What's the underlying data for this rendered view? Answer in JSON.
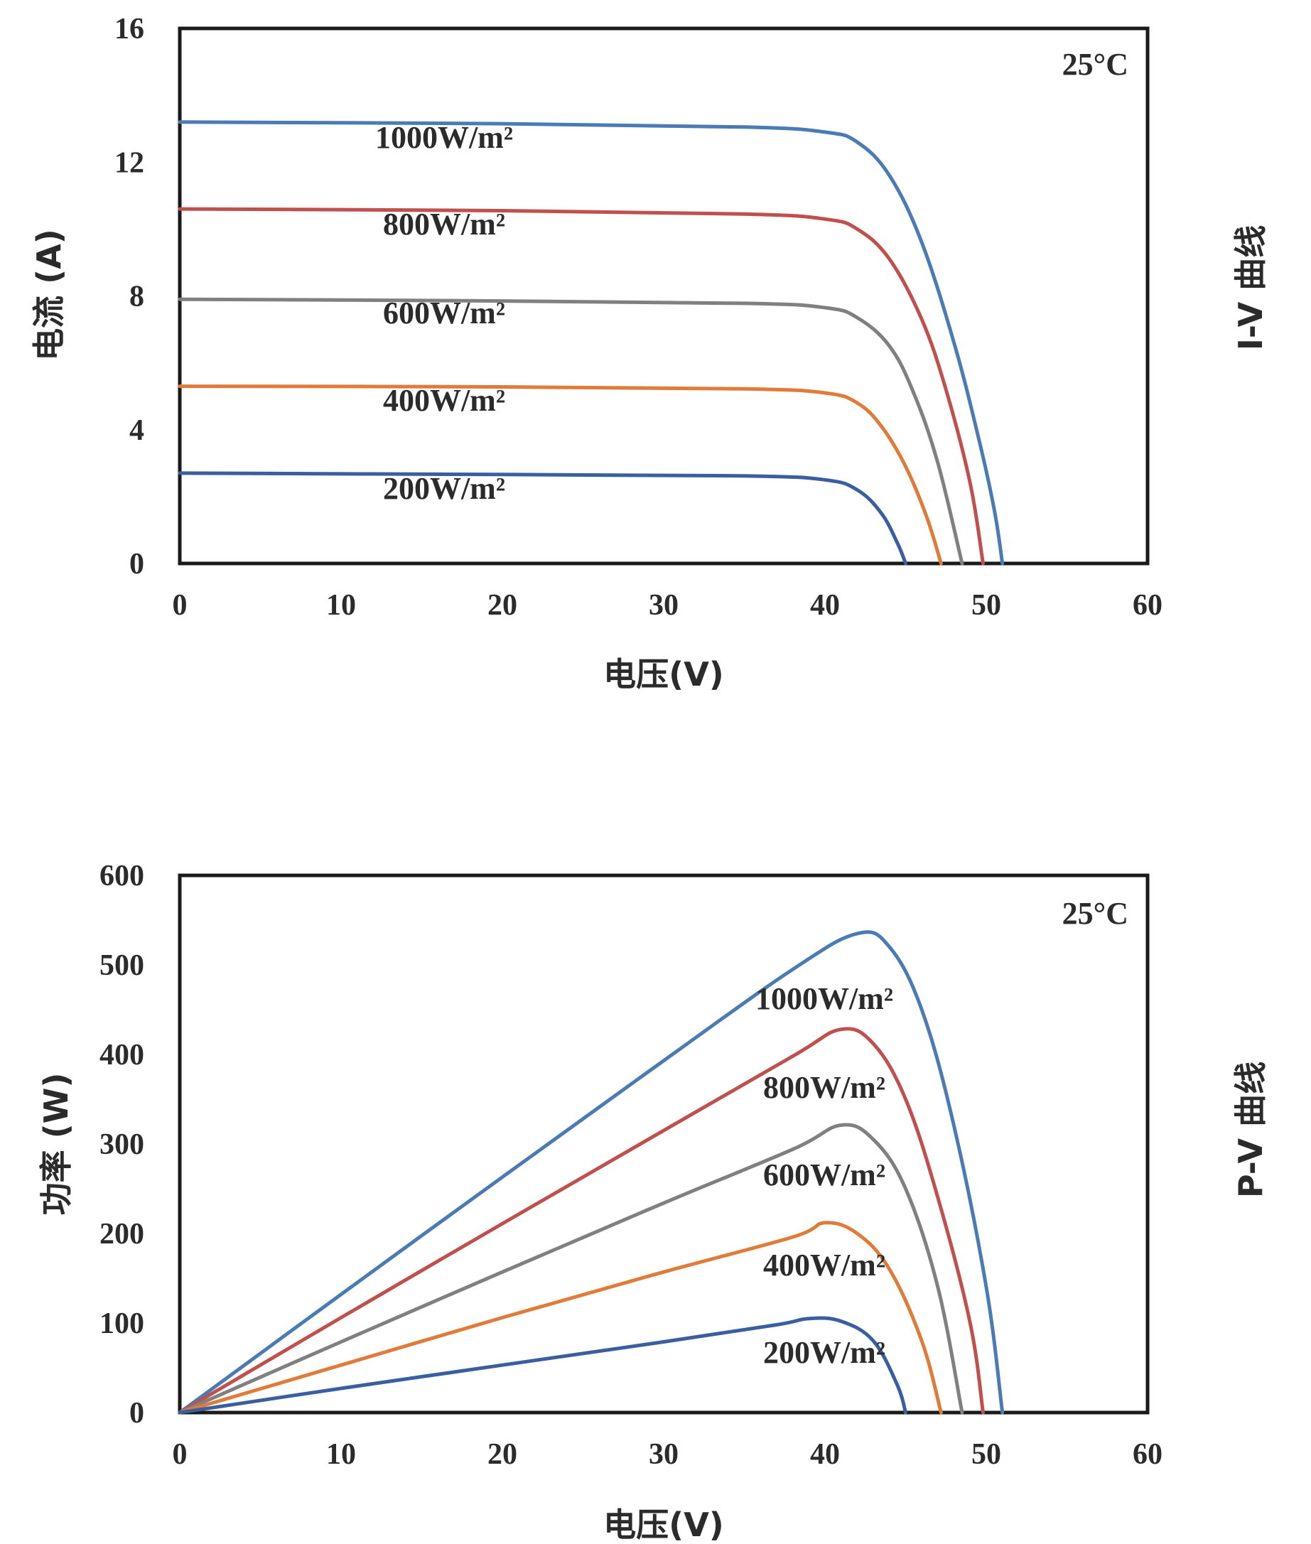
{
  "chart_data": [
    {
      "type": "line",
      "side_label": "I-V 曲线",
      "annotation": "25°C",
      "xlabel": "电压(V)",
      "ylabel": "电流 (A)",
      "xlim": [
        0,
        60
      ],
      "ylim": [
        0,
        16
      ],
      "xticks": [
        "0",
        "10",
        "20",
        "30",
        "40",
        "50",
        "60"
      ],
      "yticks": [
        "0",
        "4",
        "8",
        "12",
        "16"
      ],
      "series": [
        {
          "name": "1000W/m²",
          "color": "#4a7bb4",
          "isc": 13.2,
          "voc": 51.0,
          "vk": 2.3,
          "points": [
            [
              0,
              13.2
            ],
            [
              20,
              13.15
            ],
            [
              35,
              13.05
            ],
            [
              40,
              12.9
            ],
            [
              42,
              12.6
            ],
            [
              44,
              11.6
            ],
            [
              46,
              9.6
            ],
            [
              48,
              6.6
            ],
            [
              49.5,
              3.8
            ],
            [
              50.5,
              1.6
            ],
            [
              51,
              0
            ]
          ]
        },
        {
          "name": "800W/m²",
          "color": "#c0504d",
          "isc": 10.6,
          "voc": 49.8,
          "vk": 2.2,
          "points": [
            [
              0,
              10.6
            ],
            [
              20,
              10.55
            ],
            [
              35,
              10.45
            ],
            [
              40,
              10.3
            ],
            [
              42,
              10.0
            ],
            [
              44,
              9.1
            ],
            [
              46,
              7.3
            ],
            [
              47.5,
              5.2
            ],
            [
              49,
              2.4
            ],
            [
              49.8,
              0
            ]
          ]
        },
        {
          "name": "600W/m²",
          "color": "#808080",
          "isc": 7.9,
          "voc": 48.5,
          "vk": 2.2,
          "points": [
            [
              0,
              7.9
            ],
            [
              20,
              7.85
            ],
            [
              35,
              7.78
            ],
            [
              40,
              7.65
            ],
            [
              42,
              7.35
            ],
            [
              44,
              6.5
            ],
            [
              45.5,
              5.1
            ],
            [
              47,
              3.0
            ],
            [
              48.5,
              0
            ]
          ]
        },
        {
          "name": "400W/m²",
          "color": "#e07b39",
          "isc": 5.3,
          "voc": 47.2,
          "vk": 2.1,
          "points": [
            [
              0,
              5.3
            ],
            [
              20,
              5.28
            ],
            [
              35,
              5.22
            ],
            [
              40,
              5.1
            ],
            [
              42,
              4.8
            ],
            [
              43.5,
              4.1
            ],
            [
              45,
              2.9
            ],
            [
              46.3,
              1.4
            ],
            [
              47.2,
              0
            ]
          ]
        },
        {
          "name": "200W/m²",
          "color": "#3a5fa0",
          "isc": 2.7,
          "voc": 45.0,
          "vk": 2.0,
          "points": [
            [
              0,
              2.7
            ],
            [
              20,
              2.66
            ],
            [
              35,
              2.62
            ],
            [
              40,
              2.5
            ],
            [
              42,
              2.2
            ],
            [
              43.5,
              1.5
            ],
            [
              44.5,
              0.6
            ],
            [
              45,
              0
            ]
          ]
        }
      ]
    },
    {
      "type": "line",
      "side_label": "P-V 曲线",
      "annotation": "25°C",
      "xlabel": "电压(V)",
      "ylabel": "功率 (W)",
      "xlim": [
        0,
        60
      ],
      "ylim": [
        0,
        600
      ],
      "xticks": [
        "0",
        "10",
        "20",
        "30",
        "40",
        "50",
        "60"
      ],
      "yticks": [
        "0",
        "100",
        "200",
        "300",
        "400",
        "500",
        "600"
      ],
      "series": [
        {
          "name": "1000W/m²",
          "color": "#4a7bb4",
          "points": [
            [
              0,
              0
            ],
            [
              10,
              132
            ],
            [
              20,
              263
            ],
            [
              30,
              393
            ],
            [
              38,
              495
            ],
            [
              42,
              535
            ],
            [
              44,
              520
            ],
            [
              46,
              450
            ],
            [
              48,
              320
            ],
            [
              50,
              140
            ],
            [
              51,
              0
            ]
          ]
        },
        {
          "name": "800W/m²",
          "color": "#c0504d",
          "points": [
            [
              0,
              0
            ],
            [
              10,
              106
            ],
            [
              20,
              211
            ],
            [
              30,
              315
            ],
            [
              38,
              398
            ],
            [
              41,
              428
            ],
            [
              43,
              412
            ],
            [
              45,
              350
            ],
            [
              47,
              240
            ],
            [
              49,
              100
            ],
            [
              49.8,
              0
            ]
          ]
        },
        {
          "name": "600W/m²",
          "color": "#808080",
          "points": [
            [
              0,
              0
            ],
            [
              10,
              79
            ],
            [
              20,
              157
            ],
            [
              30,
              234
            ],
            [
              38,
              294
            ],
            [
              41,
              321
            ],
            [
              43,
              305
            ],
            [
              45,
              250
            ],
            [
              47,
              140
            ],
            [
              48.5,
              0
            ]
          ]
        },
        {
          "name": "400W/m²",
          "color": "#e07b39",
          "points": [
            [
              0,
              0
            ],
            [
              10,
              53
            ],
            [
              20,
              106
            ],
            [
              30,
              157
            ],
            [
              38,
              196
            ],
            [
              40,
              212
            ],
            [
              42,
              200
            ],
            [
              44,
              160
            ],
            [
              46,
              80
            ],
            [
              47.2,
              0
            ]
          ]
        },
        {
          "name": "200W/m²",
          "color": "#3a5fa0",
          "points": [
            [
              0,
              0
            ],
            [
              10,
              27
            ],
            [
              20,
              53
            ],
            [
              30,
              79
            ],
            [
              37,
              98
            ],
            [
              39,
              105
            ],
            [
              41,
              102
            ],
            [
              43,
              80
            ],
            [
              44.5,
              30
            ],
            [
              45,
              0
            ]
          ]
        }
      ]
    }
  ]
}
